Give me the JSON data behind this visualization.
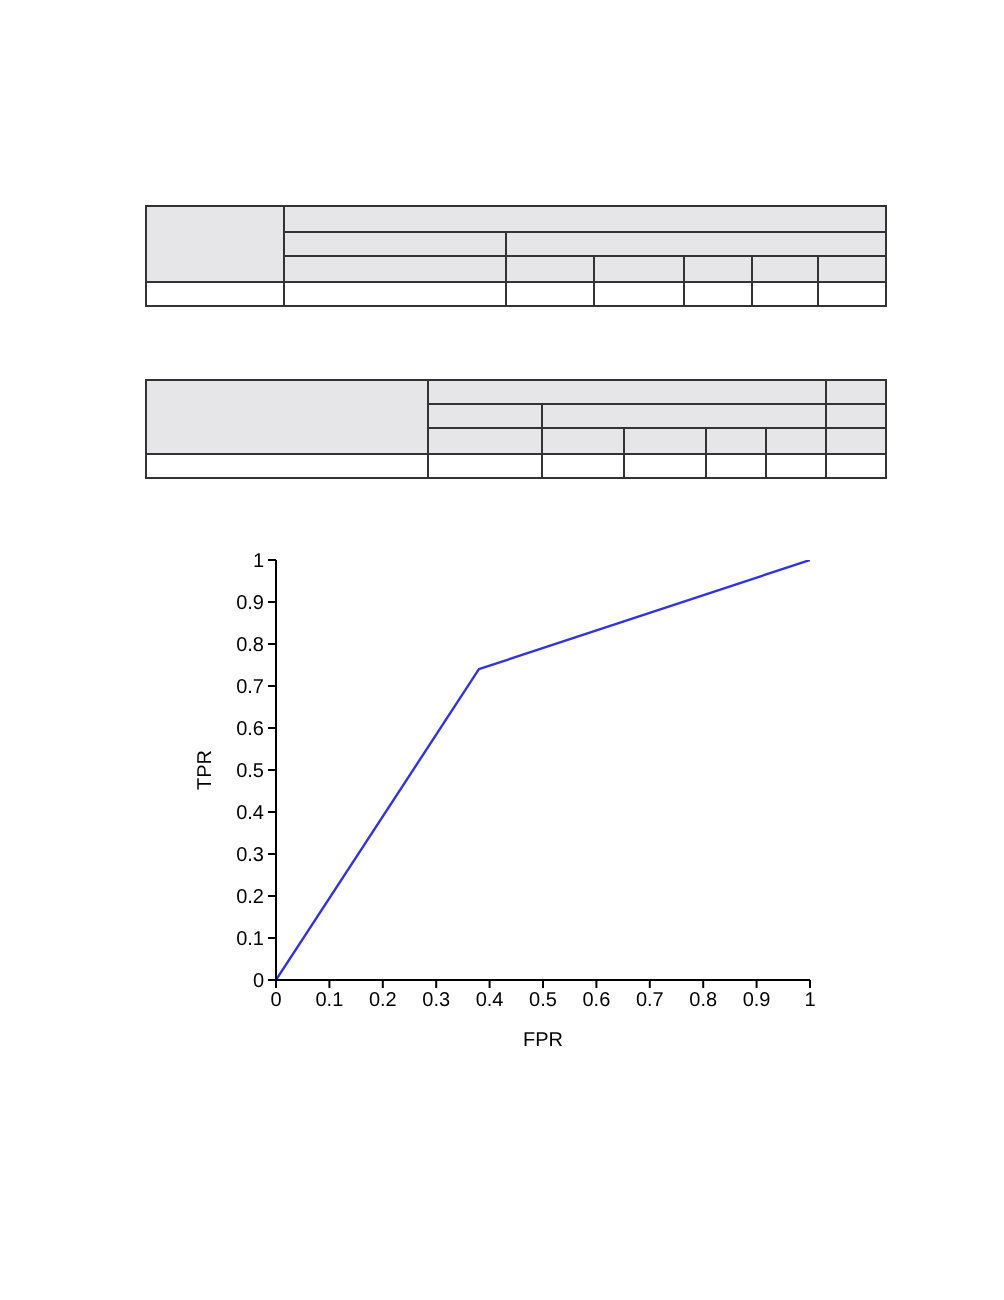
{
  "chart_data": {
    "type": "line",
    "xlabel": "FPR",
    "ylabel": "TPR",
    "x": [
      0,
      0.38,
      1
    ],
    "series": [
      {
        "color": "#3333dd",
        "values": [
          0,
          0.74,
          1
        ]
      }
    ],
    "xlim": [
      0,
      1
    ],
    "xticks": [
      0,
      0.1,
      0.2,
      0.3,
      0.4,
      0.5,
      0.6,
      0.7,
      0.8,
      0.9,
      1
    ],
    "ylim": [
      0,
      1
    ],
    "yticks": [
      0,
      0.1,
      0.2,
      0.3,
      0.4,
      0.5,
      0.6,
      0.7,
      0.8,
      0.9,
      1
    ],
    "grid": false,
    "legend": false,
    "marker": "none",
    "line_style": "solid"
  }
}
